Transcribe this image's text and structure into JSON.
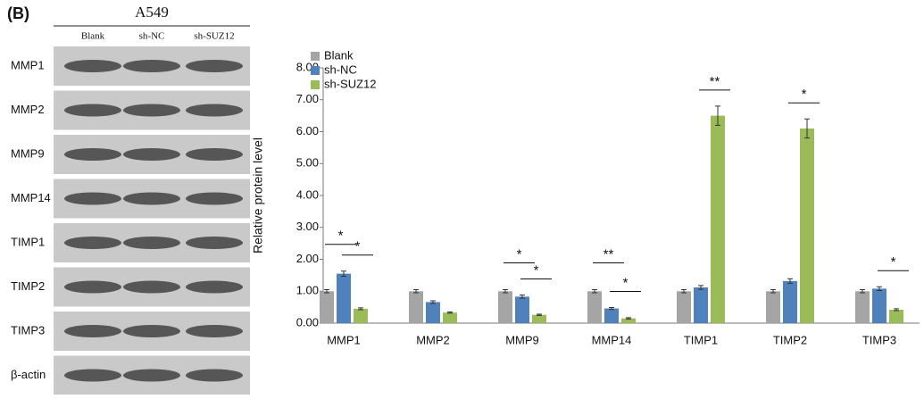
{
  "panel_label": "(B)",
  "blot": {
    "title": "A549",
    "lanes": [
      "Blank",
      "sh-NC",
      "sh-SUZ12"
    ],
    "rows": [
      "MMP1",
      "MMP2",
      "MMP9",
      "MMP14",
      "TIMP1",
      "TIMP2",
      "TIMP3",
      "β-actin"
    ]
  },
  "chart_data": {
    "type": "bar",
    "y_label": "Relative protein level",
    "categories": [
      "MMP1",
      "MMP2",
      "MMP9",
      "MMP14",
      "TIMP1",
      "TIMP2",
      "TIMP3"
    ],
    "series": [
      {
        "name": "Blank",
        "color": "#a5a5a5",
        "values": [
          1.0,
          1.0,
          1.0,
          1.0,
          1.0,
          1.0,
          1.0
        ],
        "errors": [
          0.05,
          0.05,
          0.05,
          0.05,
          0.05,
          0.05,
          0.05
        ]
      },
      {
        "name": "sh-NC",
        "color": "#4f81bd",
        "values": [
          1.55,
          0.66,
          0.83,
          0.46,
          1.12,
          1.32,
          1.08
        ],
        "errors": [
          0.08,
          0.04,
          0.05,
          0.03,
          0.06,
          0.07,
          0.06
        ]
      },
      {
        "name": "sh-SUZ12",
        "color": "#9bbb59",
        "values": [
          0.45,
          0.33,
          0.26,
          0.15,
          6.5,
          6.1,
          0.42
        ],
        "errors": [
          0.03,
          0.02,
          0.02,
          0.02,
          0.3,
          0.3,
          0.03
        ]
      }
    ],
    "ylim": [
      0,
      8
    ],
    "yticks": [
      {
        "value": 0,
        "label": "0.00"
      },
      {
        "value": 1,
        "label": "1.00"
      },
      {
        "value": 2,
        "label": "2.00"
      },
      {
        "value": 3,
        "label": "3.00"
      },
      {
        "value": 4,
        "label": "4.00"
      },
      {
        "value": 5,
        "label": "5.00"
      },
      {
        "value": 6,
        "label": "6.00"
      },
      {
        "value": 7,
        "label": "7.00"
      },
      {
        "value": 8,
        "label": "8.00"
      }
    ],
    "legend": "top-left",
    "annotations": [
      {
        "label": "*",
        "category": 0,
        "series": [
          0,
          1
        ]
      },
      {
        "label": "*",
        "category": 0,
        "series": [
          1,
          2
        ]
      },
      {
        "label": "*",
        "category": 2,
        "series": [
          0,
          1
        ]
      },
      {
        "label": "*",
        "category": 2,
        "series": [
          1,
          2
        ]
      },
      {
        "label": "**",
        "category": 3,
        "series": [
          0,
          1
        ]
      },
      {
        "label": "*",
        "category": 3,
        "series": [
          1,
          2
        ]
      },
      {
        "label": "**",
        "category": 4,
        "series": [
          1,
          2
        ]
      },
      {
        "label": "*",
        "category": 5,
        "series": [
          1,
          2
        ]
      },
      {
        "label": "*",
        "category": 6,
        "series": [
          1,
          2
        ]
      }
    ]
  }
}
